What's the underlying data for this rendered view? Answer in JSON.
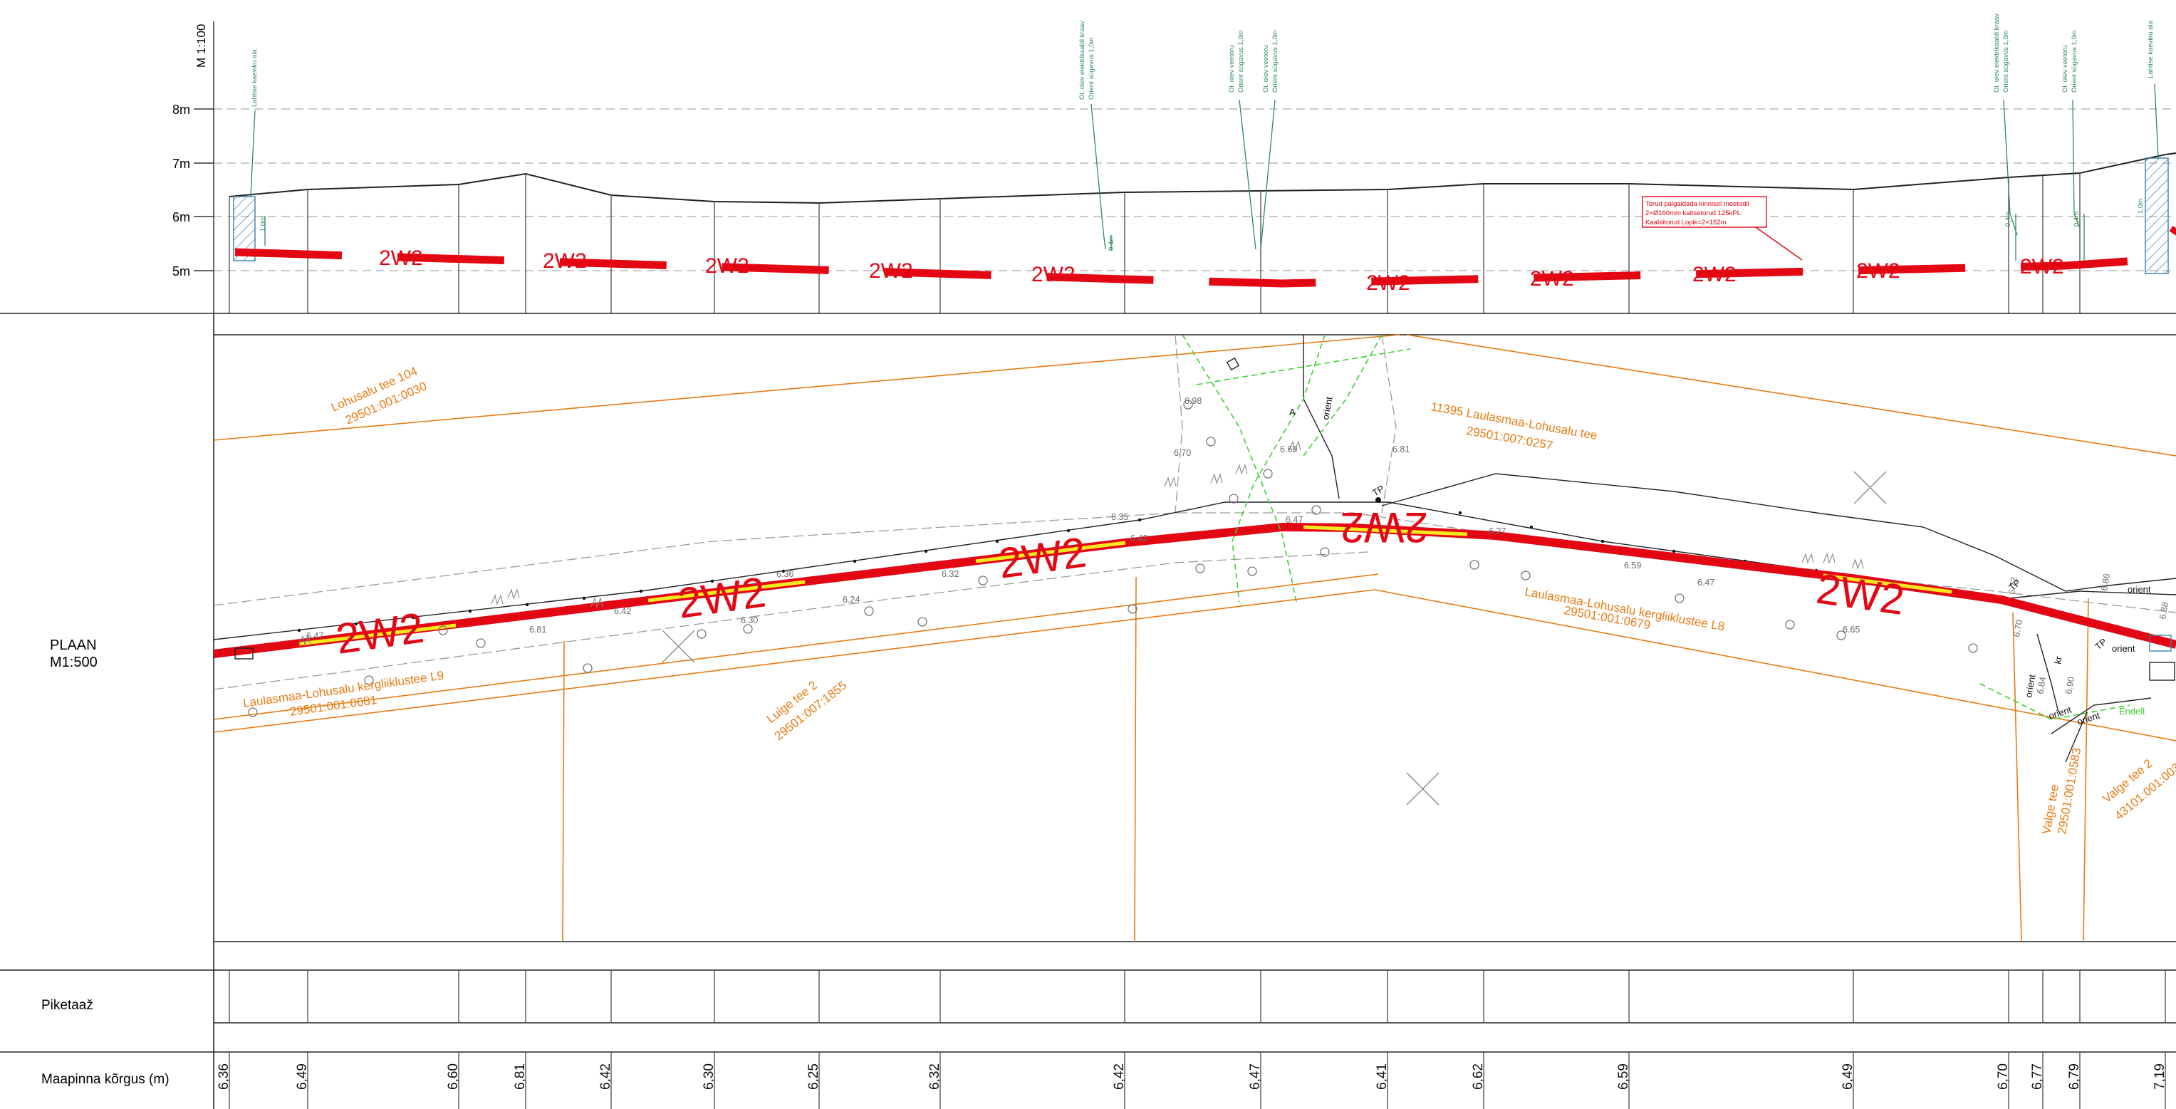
{
  "profile": {
    "scale_label": "M 1:100",
    "elevation_ticks": [
      "8m",
      "7m",
      "6m",
      "5m"
    ],
    "pipe_label": "2W2",
    "notes": {
      "existing_start": "Lahtise kaeviku ala",
      "existing_end": "Lahtise kaeviku ala",
      "el_cable_1": "Ol. olev elektrikaabli kraav",
      "el_cable_1b": "Orient sügavus 1,0m",
      "water_1": "Ol. olev veetoru",
      "water_1b": "Orient sügavus 1,0m",
      "water_2": "Ol. olev veetoru",
      "water_2b": "Orient sügavus 1,0m",
      "el_cable_2": "Ol. olev elektrikaabli kraav",
      "el_cable_2b": "Orient sügavus 1,0m",
      "water_3": "Ol. olev veetoru",
      "water_3b": "Orient sügavus 1,0m",
      "depth_small": "0,4m",
      "depth_start": "1,0m"
    },
    "red_box": {
      "line1": "Torud paigaldada kinnisel meetodil",
      "line2": "2×Ø160mm kaitsetorud 125kPL",
      "line3": "Kaablitorud Lopik=2×162m"
    }
  },
  "plan": {
    "title": "PLAAN",
    "scale": "M1:500",
    "parcels": [
      {
        "name": "Lohusalu tee 104",
        "code": "29501:001:0030"
      },
      {
        "name": "11395 Laulasmaa-Lohusalu tee",
        "code": "29501:007:0257"
      },
      {
        "name": "Laulasmaa-Lohusalu kergliiklustee L9",
        "code": "29501:001:0681"
      },
      {
        "name": "Luige tee 2",
        "code": "29501:007:1855"
      },
      {
        "name": "Laulasmaa-Lohusalu kergliiklustee L8",
        "code": "29501:001:0679"
      },
      {
        "name": "Valge tee",
        "code": "29501:001:0583"
      },
      {
        "name": "Valge tee 2",
        "code": "43101:001:003"
      }
    ],
    "spot_heights": [
      "6.47",
      "6.81",
      "6.42",
      "6.36",
      "6.24",
      "6.32",
      "6.42",
      "6.47",
      "6.59",
      "6.47",
      "6.65",
      "6.70",
      "6.98",
      "6.70",
      "6.60",
      "6.81",
      "6.72",
      "6.84",
      "6.90",
      "6.86",
      "6.88",
      "6.27",
      "6.30",
      "6.35"
    ],
    "tags": {
      "tp": "TP",
      "orient": "orient",
      "a": "A",
      "kr": "kr",
      "green": "Endell"
    }
  },
  "table": {
    "row_piketaaz": "Piketaaž",
    "row_ground": "Maapinna kõrgus (m)",
    "ground_values": [
      "6,36",
      "6,49",
      "6,60",
      "6,81",
      "6,42",
      "6,30",
      "6,25",
      "6,32",
      "6,42",
      "6,47",
      "6,41",
      "6,62",
      "6,59",
      "6,49",
      "6,70",
      "6,77",
      "6,79",
      "7,19"
    ]
  },
  "colors": {
    "pipe": "#e30613",
    "parcel": "#e87b12",
    "pipe_fill": "#f3ea1d",
    "existing": "#2e8b57",
    "green_util": "#3bd12f"
  }
}
